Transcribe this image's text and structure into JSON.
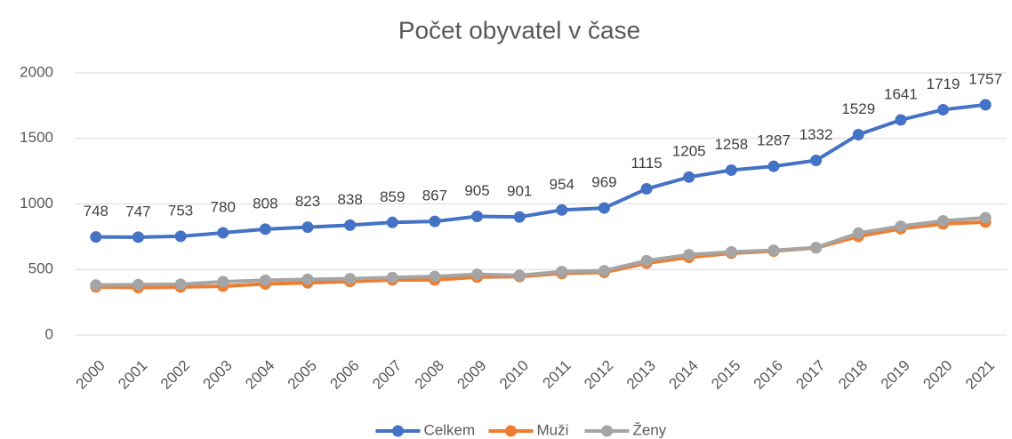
{
  "chart_data": {
    "type": "line",
    "title": "Počet obyvatel v čase",
    "categories": [
      "2000",
      "2001",
      "2002",
      "2003",
      "2004",
      "2005",
      "2006",
      "2007",
      "2008",
      "2009",
      "2010",
      "2011",
      "2012",
      "2013",
      "2014",
      "2015",
      "2016",
      "2017",
      "2018",
      "2019",
      "2020",
      "2021"
    ],
    "series": [
      {
        "name": "Celkem",
        "color": "#4472c4",
        "values": [
          748,
          747,
          753,
          780,
          808,
          823,
          838,
          859,
          867,
          905,
          901,
          954,
          969,
          1115,
          1205,
          1258,
          1287,
          1332,
          1529,
          1641,
          1719,
          1757
        ]
      },
      {
        "name": "Muži",
        "color": "#ed7d31",
        "values": [
          367,
          362,
          366,
          373,
          390,
          398,
          408,
          420,
          420,
          442,
          446,
          470,
          478,
          548,
          592,
          624,
          640,
          665,
          752,
          811,
          848,
          862
        ]
      },
      {
        "name": "Ženy",
        "color": "#a5a5a5",
        "values": [
          381,
          385,
          387,
          407,
          418,
          425,
          430,
          439,
          447,
          463,
          455,
          484,
          491,
          567,
          613,
          634,
          647,
          667,
          777,
          830,
          871,
          895
        ]
      }
    ],
    "data_labels_series": 0,
    "ylim": [
      0,
      2000
    ],
    "yticks": [
      0,
      500,
      1000,
      1500,
      2000
    ],
    "grid": true,
    "legend": "bottom"
  }
}
